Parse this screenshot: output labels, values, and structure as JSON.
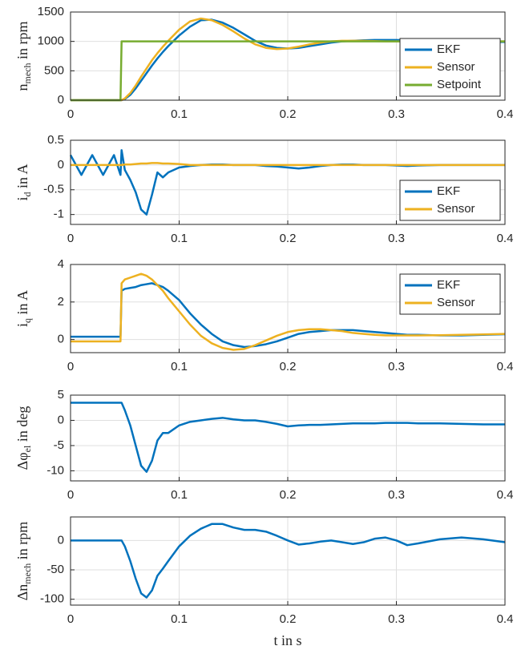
{
  "chart_data": [
    {
      "type": "line",
      "ylabel": [
        "n",
        "mech",
        " in rpm"
      ],
      "x": [
        0,
        0.01,
        0.02,
        0.03,
        0.04,
        0.046,
        0.047,
        0.05,
        0.055,
        0.06,
        0.065,
        0.07,
        0.075,
        0.08,
        0.085,
        0.09,
        0.1,
        0.11,
        0.12,
        0.13,
        0.14,
        0.15,
        0.16,
        0.17,
        0.18,
        0.19,
        0.2,
        0.21,
        0.22,
        0.23,
        0.24,
        0.25,
        0.26,
        0.27,
        0.28,
        0.29,
        0.3,
        0.31,
        0.32,
        0.34,
        0.36,
        0.38,
        0.4
      ],
      "xlim": [
        0,
        0.4
      ],
      "xticks": [
        0,
        0.1,
        0.2,
        0.3,
        0.4
      ],
      "ylim": [
        0,
        1500
      ],
      "yticks": [
        0,
        500,
        1000,
        1500
      ],
      "grid": true,
      "legend": "southeast",
      "series": [
        {
          "name": "EKF",
          "color": "#0072bd",
          "values": [
            0,
            0,
            0,
            0,
            0,
            0,
            0,
            20,
            90,
            200,
            330,
            460,
            590,
            710,
            820,
            920,
            1100,
            1250,
            1360,
            1370,
            1320,
            1230,
            1120,
            1010,
            930,
            890,
            880,
            890,
            920,
            950,
            980,
            1000,
            1010,
            1020,
            1025,
            1025,
            1025,
            1020,
            1015,
            1005,
            995,
            990,
            990
          ]
        },
        {
          "name": "Sensor",
          "color": "#edb120",
          "values": [
            0,
            0,
            0,
            0,
            0,
            0,
            0,
            30,
            120,
            250,
            400,
            540,
            680,
            800,
            910,
            1010,
            1200,
            1340,
            1390,
            1360,
            1280,
            1170,
            1050,
            950,
            890,
            870,
            880,
            910,
            950,
            980,
            1000,
            1010,
            1010,
            1010,
            1005,
            1000,
            1000,
            1000,
            1000,
            1000,
            1000,
            1000,
            1000
          ]
        },
        {
          "name": "Setpoint",
          "color": "#77ac30",
          "values": [
            0,
            0,
            0,
            0,
            0,
            0,
            1000,
            1000,
            1000,
            1000,
            1000,
            1000,
            1000,
            1000,
            1000,
            1000,
            1000,
            1000,
            1000,
            1000,
            1000,
            1000,
            1000,
            1000,
            1000,
            1000,
            1000,
            1000,
            1000,
            1000,
            1000,
            1000,
            1000,
            1000,
            1000,
            1000,
            1000,
            1000,
            1000,
            1000,
            1000,
            1000,
            1000
          ]
        }
      ]
    },
    {
      "type": "line",
      "ylabel": [
        "i",
        "d",
        " in A"
      ],
      "x": [
        0,
        0.01,
        0.02,
        0.03,
        0.04,
        0.046,
        0.047,
        0.05,
        0.055,
        0.06,
        0.065,
        0.07,
        0.075,
        0.08,
        0.085,
        0.09,
        0.1,
        0.11,
        0.12,
        0.13,
        0.14,
        0.15,
        0.16,
        0.17,
        0.18,
        0.19,
        0.2,
        0.21,
        0.22,
        0.23,
        0.24,
        0.25,
        0.26,
        0.27,
        0.28,
        0.29,
        0.3,
        0.31,
        0.32,
        0.34,
        0.36,
        0.38,
        0.4
      ],
      "xlim": [
        0,
        0.4
      ],
      "xticks": [
        0,
        0.1,
        0.2,
        0.3,
        0.4
      ],
      "ylim": [
        -1.2,
        0.5
      ],
      "yticks": [
        -1,
        -0.5,
        0,
        0.5
      ],
      "grid": true,
      "legend": "southeast",
      "series": [
        {
          "name": "EKF",
          "color": "#0072bd",
          "values": [
            0.2,
            -0.2,
            0.2,
            -0.2,
            0.2,
            -0.2,
            0.3,
            -0.1,
            -0.3,
            -0.55,
            -0.9,
            -1.0,
            -0.6,
            -0.15,
            -0.25,
            -0.15,
            -0.05,
            -0.02,
            0,
            0.01,
            0.01,
            0,
            0,
            0,
            -0.02,
            -0.03,
            -0.05,
            -0.07,
            -0.05,
            -0.02,
            0,
            0.01,
            0.01,
            0,
            0,
            0,
            -0.01,
            -0.02,
            -0.01,
            0,
            0,
            0,
            0
          ]
        },
        {
          "name": "Sensor",
          "color": "#edb120",
          "values": [
            0,
            0,
            0,
            0,
            0,
            0,
            0,
            0.01,
            0.01,
            0.02,
            0.03,
            0.03,
            0.04,
            0.04,
            0.03,
            0.03,
            0.02,
            0,
            0,
            0,
            0,
            0,
            0,
            0,
            0,
            0,
            0,
            0,
            0,
            0,
            0,
            0,
            0,
            0,
            0,
            0,
            0,
            0,
            0,
            0,
            0,
            0,
            0
          ]
        }
      ]
    },
    {
      "type": "line",
      "ylabel": [
        "i",
        "q",
        " in A"
      ],
      "x": [
        0,
        0.01,
        0.02,
        0.03,
        0.04,
        0.046,
        0.047,
        0.05,
        0.055,
        0.06,
        0.065,
        0.07,
        0.075,
        0.08,
        0.085,
        0.09,
        0.1,
        0.11,
        0.12,
        0.13,
        0.14,
        0.15,
        0.16,
        0.17,
        0.18,
        0.19,
        0.2,
        0.21,
        0.22,
        0.23,
        0.24,
        0.25,
        0.26,
        0.27,
        0.28,
        0.29,
        0.3,
        0.31,
        0.32,
        0.34,
        0.36,
        0.38,
        0.4
      ],
      "xlim": [
        0,
        0.4
      ],
      "xticks": [
        0,
        0.1,
        0.2,
        0.3,
        0.4
      ],
      "ylim": [
        -0.7,
        4
      ],
      "yticks": [
        0,
        2,
        4
      ],
      "grid": true,
      "legend": "northeast",
      "series": [
        {
          "name": "EKF",
          "color": "#0072bd",
          "values": [
            0.15,
            0.15,
            0.15,
            0.15,
            0.15,
            0.15,
            2.6,
            2.7,
            2.75,
            2.8,
            2.9,
            2.95,
            3.0,
            2.9,
            2.8,
            2.6,
            2.1,
            1.4,
            0.8,
            0.3,
            -0.1,
            -0.3,
            -0.4,
            -0.35,
            -0.25,
            -0.1,
            0.1,
            0.3,
            0.4,
            0.45,
            0.5,
            0.5,
            0.5,
            0.45,
            0.4,
            0.35,
            0.3,
            0.25,
            0.25,
            0.22,
            0.22,
            0.25,
            0.28
          ]
        },
        {
          "name": "Sensor",
          "color": "#edb120",
          "values": [
            -0.1,
            -0.1,
            -0.1,
            -0.1,
            -0.1,
            -0.1,
            3.0,
            3.2,
            3.3,
            3.4,
            3.5,
            3.4,
            3.2,
            2.9,
            2.6,
            2.2,
            1.5,
            0.8,
            0.2,
            -0.2,
            -0.45,
            -0.55,
            -0.5,
            -0.3,
            -0.05,
            0.2,
            0.4,
            0.5,
            0.55,
            0.55,
            0.5,
            0.45,
            0.35,
            0.3,
            0.25,
            0.22,
            0.22,
            0.22,
            0.22,
            0.23,
            0.25,
            0.27,
            0.3
          ]
        }
      ]
    },
    {
      "type": "line",
      "ylabel": [
        "Δφ",
        "el",
        " in deg"
      ],
      "x": [
        0,
        0.01,
        0.02,
        0.03,
        0.04,
        0.046,
        0.047,
        0.05,
        0.055,
        0.06,
        0.065,
        0.07,
        0.075,
        0.08,
        0.085,
        0.09,
        0.1,
        0.11,
        0.12,
        0.13,
        0.14,
        0.15,
        0.16,
        0.17,
        0.18,
        0.19,
        0.2,
        0.21,
        0.22,
        0.23,
        0.24,
        0.25,
        0.26,
        0.27,
        0.28,
        0.29,
        0.3,
        0.31,
        0.32,
        0.34,
        0.36,
        0.38,
        0.4
      ],
      "xlim": [
        0,
        0.4
      ],
      "xticks": [
        0,
        0.1,
        0.2,
        0.3,
        0.4
      ],
      "ylim": [
        -12,
        5
      ],
      "yticks": [
        -10,
        -5,
        0,
        5
      ],
      "grid": true,
      "series": [
        {
          "color": "#0072bd",
          "values": [
            3.5,
            3.5,
            3.5,
            3.5,
            3.5,
            3.5,
            3.5,
            2,
            -1,
            -5,
            -9,
            -10.2,
            -8,
            -4,
            -2.5,
            -2.5,
            -1,
            -0.3,
            0,
            0.3,
            0.5,
            0.2,
            0,
            0,
            -0.3,
            -0.7,
            -1.2,
            -1.0,
            -0.9,
            -0.9,
            -0.8,
            -0.7,
            -0.6,
            -0.6,
            -0.6,
            -0.5,
            -0.5,
            -0.5,
            -0.6,
            -0.6,
            -0.7,
            -0.8,
            -0.8
          ]
        }
      ]
    },
    {
      "type": "line",
      "ylabel": [
        "Δn",
        "mech",
        " in rpm"
      ],
      "xlabel": "t in s",
      "x": [
        0,
        0.01,
        0.02,
        0.03,
        0.04,
        0.046,
        0.047,
        0.05,
        0.055,
        0.06,
        0.065,
        0.07,
        0.075,
        0.08,
        0.085,
        0.09,
        0.1,
        0.11,
        0.12,
        0.13,
        0.14,
        0.15,
        0.16,
        0.17,
        0.18,
        0.19,
        0.2,
        0.21,
        0.22,
        0.23,
        0.24,
        0.25,
        0.26,
        0.27,
        0.28,
        0.29,
        0.3,
        0.31,
        0.32,
        0.34,
        0.36,
        0.38,
        0.4
      ],
      "xlim": [
        0,
        0.4
      ],
      "xticks": [
        0,
        0.1,
        0.2,
        0.3,
        0.4
      ],
      "ylim": [
        -110,
        40
      ],
      "yticks": [
        -100,
        -50,
        0
      ],
      "grid": true,
      "series": [
        {
          "color": "#0072bd",
          "values": [
            0,
            0,
            0,
            0,
            0,
            0,
            0,
            -10,
            -35,
            -65,
            -90,
            -97,
            -85,
            -60,
            -48,
            -35,
            -10,
            8,
            20,
            28,
            28,
            22,
            18,
            18,
            15,
            8,
            0,
            -7,
            -5,
            -2,
            0,
            -3,
            -6,
            -3,
            3,
            5,
            0,
            -8,
            -5,
            2,
            5,
            2,
            -3
          ]
        }
      ]
    }
  ]
}
